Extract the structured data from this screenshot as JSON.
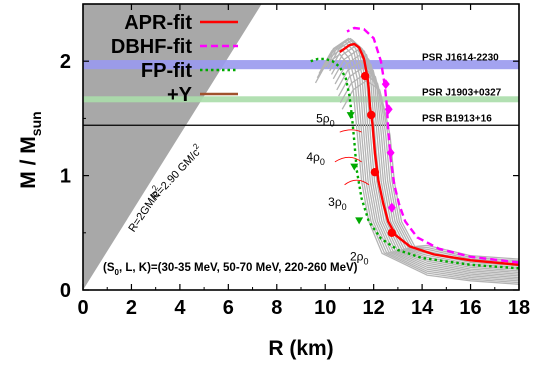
{
  "chart_data": {
    "type": "line",
    "xlabel": "R (km)",
    "ylabel_main": "M / M",
    "ylabel_sub": "sun",
    "xlim": [
      0,
      18
    ],
    "ylim": [
      0,
      2.5
    ],
    "xticks": [
      0,
      2,
      4,
      6,
      8,
      10,
      12,
      14,
      16,
      18
    ],
    "yticks": [
      0,
      1,
      2
    ],
    "grid": false,
    "legend_position": "top-left",
    "legend": [
      {
        "name": "APR-fit",
        "color": "#ff0000",
        "style": "solid"
      },
      {
        "name": "DBHF-fit",
        "color": "#ff00ff",
        "style": "dashed"
      },
      {
        "name": "FP-fit",
        "color": "#00aa00",
        "style": "dotted"
      },
      {
        "name": "+Y",
        "color": "#a0522d",
        "style": "solid"
      }
    ],
    "pulsars": [
      {
        "name": "PSR J1614-2230",
        "mass": 1.97,
        "band": [
          1.93,
          2.01
        ],
        "color": "#9999ee"
      },
      {
        "name": "PSR J1903+0327",
        "mass": 1.667,
        "band": [
          1.65,
          1.69
        ],
        "color": "#aaddaa"
      },
      {
        "name": "PSR B1913+16",
        "mass": 1.44,
        "band": [
          1.44,
          1.44
        ],
        "color": "#000000"
      }
    ],
    "causality": [
      {
        "label_main": "R=2GM/c",
        "label_sup": "2",
        "slope": 2.95,
        "color": "#a8a8a8"
      },
      {
        "label_main": "R=2.90 GM/c",
        "label_sup": "2",
        "slope": 2.0,
        "color": "#d0d0d0"
      }
    ],
    "density_labels": [
      {
        "coef": "5",
        "sub": "0",
        "r": 10.2,
        "m": 1.51
      },
      {
        "coef": "4",
        "sub": "0",
        "r": 9.8,
        "m": 1.17
      },
      {
        "coef": "3",
        "sub": "0",
        "r": 10.7,
        "m": 0.78
      },
      {
        "coef": "2",
        "sub": "0",
        "r": 11.6,
        "m": 0.3
      }
    ],
    "parameter_note": {
      "open": "(S",
      "sub": "0",
      "rest": ", L, K)=(30-35 MeV, 50-70 MeV, 220-260 MeV)"
    },
    "series": [
      {
        "name": "APR-fit",
        "color": "#ff0000",
        "style": "solid",
        "x": [
          18.0,
          16.0,
          14.5,
          13.5,
          12.9,
          12.6,
          12.4,
          12.2,
          12.05,
          11.95,
          11.85,
          11.8,
          11.75,
          11.6,
          11.4,
          11.2,
          11.0,
          10.8,
          10.6
        ],
        "y": [
          0.22,
          0.26,
          0.31,
          0.38,
          0.48,
          0.6,
          0.75,
          0.95,
          1.2,
          1.45,
          1.6,
          1.75,
          1.85,
          2.02,
          2.12,
          2.15,
          2.14,
          2.11,
          2.08
        ],
        "markers": {
          "x": [
            12.75,
            12.05,
            11.9,
            11.65
          ],
          "y": [
            0.5,
            1.03,
            1.53,
            1.87
          ],
          "shape": "circle"
        }
      },
      {
        "name": "DBHF-fit",
        "color": "#ff00ff",
        "style": "dashed",
        "x": [
          18.0,
          16.0,
          14.7,
          13.8,
          13.3,
          13.05,
          12.85,
          12.7,
          12.6,
          12.55,
          12.45,
          12.3,
          12.0,
          11.6,
          11.2,
          10.9
        ],
        "y": [
          0.24,
          0.29,
          0.36,
          0.46,
          0.6,
          0.75,
          0.92,
          1.15,
          1.4,
          1.6,
          1.8,
          2.0,
          2.2,
          2.28,
          2.29,
          2.26
        ],
        "markers": {
          "x": [
            12.75,
            12.7,
            12.62,
            12.5
          ],
          "y": [
            0.72,
            1.2,
            1.58,
            1.8
          ],
          "shape": "diamond"
        }
      },
      {
        "name": "FP-fit",
        "color": "#00aa00",
        "style": "dotted",
        "x": [
          18.0,
          16.0,
          14.0,
          13.0,
          12.3,
          11.8,
          11.5,
          11.3,
          11.2,
          11.1,
          11.0,
          10.85,
          10.6,
          10.3,
          10.0,
          9.7,
          9.4
        ],
        "y": [
          0.19,
          0.22,
          0.28,
          0.35,
          0.45,
          0.6,
          0.8,
          1.05,
          1.3,
          1.52,
          1.7,
          1.85,
          1.95,
          2.0,
          2.02,
          2.02,
          2.0
        ],
        "markers": {
          "x": [
            11.05,
            11.2,
            11.4
          ],
          "y": [
            1.52,
            1.07,
            0.6
          ],
          "shape": "triangle"
        }
      }
    ],
    "grey_curve_count": 16,
    "short_curve_count": 3
  }
}
